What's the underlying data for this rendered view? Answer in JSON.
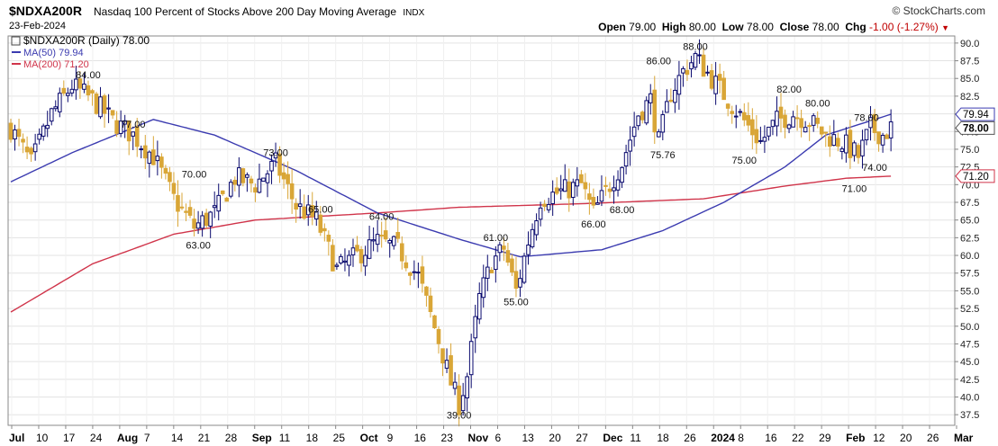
{
  "header": {
    "symbol": "$NDXA200R",
    "description": "Nasdaq 100 Percent of Stocks Above 200 Day Moving Average",
    "exchange": "INDX",
    "date": "23-Feb-2024",
    "brand": "© StockCharts.com",
    "open_label": "Open",
    "open": "79.00",
    "high_label": "High",
    "high": "80.00",
    "low_label": "Low",
    "low": "78.00",
    "close_label": "Close",
    "close": "78.00",
    "chg_label": "Chg",
    "chg": "-1.00 (-1.27%)",
    "chg_arrow": "▼"
  },
  "legend": {
    "main": "$NDXA200R (Daily) 78.00",
    "ma50": "MA(50) 79.94",
    "ma200": "MA(200) 71.20"
  },
  "colors": {
    "up": "#0a0a6e",
    "down": "#d9a637",
    "ma50": "#3b3bb0",
    "ma200": "#d0344a",
    "grid": "#e3e3e3"
  },
  "chart_data": {
    "type": "candlestick",
    "title": "$NDXA200R Nasdaq 100 Percent of Stocks Above 200 Day Moving Average INDX",
    "ylim": [
      36,
      91
    ],
    "y_ticks": [
      37.5,
      40.0,
      42.5,
      45.0,
      47.5,
      50.0,
      52.5,
      55.0,
      57.5,
      60.0,
      62.5,
      65.0,
      67.5,
      70.0,
      72.5,
      75.0,
      77.5,
      80.0,
      82.5,
      85.0,
      87.5,
      90.0
    ],
    "x_labels": [
      "Jul",
      "10",
      "17",
      "24",
      "Aug",
      "7",
      "14",
      "21",
      "28",
      "Sep",
      "11",
      "18",
      "25",
      "Oct",
      "9",
      "16",
      "23",
      "Nov",
      "6",
      "13",
      "20",
      "27",
      "Dec",
      "11",
      "18",
      "26",
      "2024",
      "8",
      "16",
      "22",
      "29",
      "Feb",
      "12",
      "20",
      "26",
      "Mar"
    ],
    "x_label_bold": [
      "Jul",
      "Aug",
      "Sep",
      "Oct",
      "Nov",
      "Dec",
      "2024",
      "Feb",
      "Mar"
    ],
    "anchors": [
      [
        0,
        78
      ],
      [
        5,
        73
      ],
      [
        10,
        80
      ],
      [
        15,
        84
      ],
      [
        20,
        82
      ],
      [
        25,
        79
      ],
      [
        30,
        77
      ],
      [
        35,
        74
      ],
      [
        40,
        68
      ],
      [
        45,
        64
      ],
      [
        50,
        66
      ],
      [
        55,
        71
      ],
      [
        60,
        70
      ],
      [
        65,
        73
      ],
      [
        70,
        67
      ],
      [
        75,
        65
      ],
      [
        80,
        58
      ],
      [
        85,
        60
      ],
      [
        90,
        62
      ],
      [
        95,
        61
      ],
      [
        100,
        57
      ],
      [
        105,
        48
      ],
      [
        108,
        42
      ],
      [
        110,
        39
      ],
      [
        112,
        43
      ],
      [
        115,
        54
      ],
      [
        118,
        59
      ],
      [
        121,
        61
      ],
      [
        124,
        55
      ],
      [
        127,
        62
      ],
      [
        130,
        68
      ],
      [
        135,
        69
      ],
      [
        140,
        70
      ],
      [
        143,
        66
      ],
      [
        146,
        69
      ],
      [
        150,
        73
      ],
      [
        154,
        80
      ],
      [
        157,
        82
      ],
      [
        159,
        76
      ],
      [
        162,
        83
      ],
      [
        165,
        86
      ],
      [
        168,
        88
      ],
      [
        172,
        85
      ],
      [
        176,
        82
      ],
      [
        180,
        79
      ],
      [
        184,
        76
      ],
      [
        188,
        79
      ],
      [
        192,
        80
      ],
      [
        196,
        79
      ],
      [
        200,
        77
      ],
      [
        204,
        76
      ],
      [
        208,
        74
      ],
      [
        211,
        78
      ],
      [
        214,
        77
      ],
      [
        216,
        78
      ]
    ],
    "ma50": [
      [
        0,
        70.4
      ],
      [
        15,
        74.5
      ],
      [
        35,
        79.2
      ],
      [
        50,
        77.0
      ],
      [
        70,
        72.0
      ],
      [
        90,
        66.0
      ],
      [
        110,
        62.3
      ],
      [
        125,
        59.8
      ],
      [
        145,
        60.8
      ],
      [
        160,
        63.5
      ],
      [
        175,
        67.5
      ],
      [
        190,
        72.5
      ],
      [
        200,
        77.0
      ],
      [
        216,
        79.94
      ]
    ],
    "ma200": [
      [
        0,
        52.0
      ],
      [
        20,
        58.8
      ],
      [
        40,
        63.0
      ],
      [
        60,
        65.0
      ],
      [
        90,
        66.0
      ],
      [
        110,
        66.8
      ],
      [
        140,
        67.3
      ],
      [
        170,
        68.0
      ],
      [
        190,
        69.8
      ],
      [
        205,
        70.9
      ],
      [
        216,
        71.2
      ]
    ],
    "annotations": [
      {
        "text": "84.00",
        "i": 19,
        "v": 84.0,
        "pos": "above"
      },
      {
        "text": "77.00",
        "i": 30,
        "v": 77.0,
        "pos": "above"
      },
      {
        "text": "70.00",
        "i": 45,
        "v": 70.0,
        "pos": "above"
      },
      {
        "text": "63.00",
        "i": 46,
        "v": 63.0,
        "pos": "below"
      },
      {
        "text": "73.00",
        "i": 65,
        "v": 73.0,
        "pos": "above"
      },
      {
        "text": "65.00",
        "i": 76,
        "v": 65.0,
        "pos": "above"
      },
      {
        "text": "64.00",
        "i": 91,
        "v": 64.0,
        "pos": "above"
      },
      {
        "text": "39.00",
        "i": 110,
        "v": 39.0,
        "pos": "below"
      },
      {
        "text": "61.00",
        "i": 119,
        "v": 61.0,
        "pos": "above"
      },
      {
        "text": "55.00",
        "i": 124,
        "v": 55.0,
        "pos": "below"
      },
      {
        "text": "66.00",
        "i": 143,
        "v": 66.0,
        "pos": "below"
      },
      {
        "text": "68.00",
        "i": 150,
        "v": 68.0,
        "pos": "below"
      },
      {
        "text": "75.76",
        "i": 160,
        "v": 75.76,
        "pos": "below"
      },
      {
        "text": "86.00",
        "i": 159,
        "v": 86.0,
        "pos": "above"
      },
      {
        "text": "88.00",
        "i": 168,
        "v": 88.0,
        "pos": "above"
      },
      {
        "text": "75.00",
        "i": 180,
        "v": 75.0,
        "pos": "below"
      },
      {
        "text": "82.00",
        "i": 191,
        "v": 82.0,
        "pos": "above"
      },
      {
        "text": "80.00",
        "i": 198,
        "v": 80.0,
        "pos": "above"
      },
      {
        "text": "71.00",
        "i": 207,
        "v": 71.0,
        "pos": "below"
      },
      {
        "text": "78.00",
        "i": 210,
        "v": 78.0,
        "pos": "above"
      },
      {
        "text": "74.00",
        "i": 212,
        "v": 74.0,
        "pos": "below"
      }
    ],
    "last_labels": [
      {
        "text": "79.94",
        "v": 79.94,
        "style": "ma50"
      },
      {
        "text": "78.00",
        "v": 78.0,
        "style": "close"
      },
      {
        "text": "71.20",
        "v": 71.2,
        "style": "ma200"
      }
    ],
    "grid": true
  }
}
